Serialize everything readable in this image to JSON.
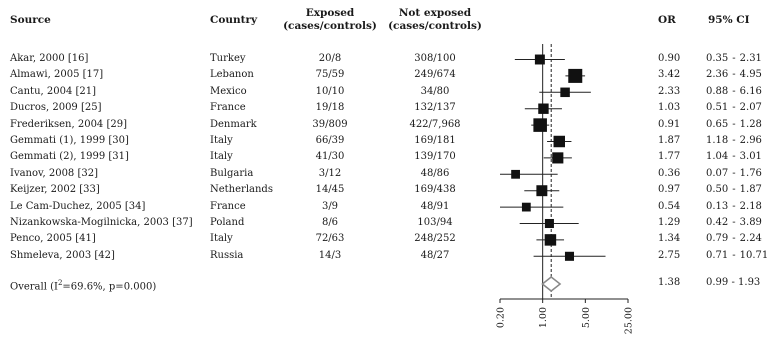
{
  "table": {
    "headers": {
      "source": "Source",
      "country": "Country",
      "exposed_line1": "Exposed",
      "exposed_line2": "(cases/controls)",
      "notexposed_line1": "Not exposed",
      "notexposed_line2": "(cases/controls)",
      "or": "OR",
      "ci": "95% CI"
    },
    "rows": [
      {
        "source": "Akar, 2000 [16]",
        "country": "Turkey",
        "exposed": "20/8",
        "not_exposed": "308/100",
        "or": "0.90",
        "ci_low": "0.35",
        "ci_high": "2.31"
      },
      {
        "source": "Almawi, 2005 [17]",
        "country": "Lebanon",
        "exposed": "75/59",
        "not_exposed": "249/674",
        "or": "3.42",
        "ci_low": "2.36",
        "ci_high": "4.95"
      },
      {
        "source": "Cantu, 2004 [21]",
        "country": "Mexico",
        "exposed": "10/10",
        "not_exposed": "34/80",
        "or": "2.33",
        "ci_low": "0.88",
        "ci_high": "6.16"
      },
      {
        "source": "Ducros, 2009 [25]",
        "country": "France",
        "exposed": "19/18",
        "not_exposed": "132/137",
        "or": "1.03",
        "ci_low": "0.51",
        "ci_high": "2.07"
      },
      {
        "source": "Frederiksen, 2004 [29]",
        "country": "Denmark",
        "exposed": "39/809",
        "not_exposed": "422/7,968",
        "or": "0.91",
        "ci_low": "0.65",
        "ci_high": "1.28"
      },
      {
        "source": "Gemmati (1), 1999 [30]",
        "country": "Italy",
        "exposed": "66/39",
        "not_exposed": "169/181",
        "or": "1.87",
        "ci_low": "1.18",
        "ci_high": "2.96"
      },
      {
        "source": "Gemmati (2), 1999 [31]",
        "country": "Italy",
        "exposed": "41/30",
        "not_exposed": "139/170",
        "or": "1.77",
        "ci_low": "1.04",
        "ci_high": "3.01"
      },
      {
        "source": "Ivanov, 2008 [32]",
        "country": "Bulgaria",
        "exposed": "3/12",
        "not_exposed": "48/86",
        "or": "0.36",
        "ci_low": "0.07",
        "ci_high": "1.76"
      },
      {
        "source": "Keijzer, 2002 [33]",
        "country": "Netherlands",
        "exposed": "14/45",
        "not_exposed": "169/438",
        "or": "0.97",
        "ci_low": "0.50",
        "ci_high": "1.87"
      },
      {
        "source": "Le Cam-Duchez, 2005 [34]",
        "country": "France",
        "exposed": "3/9",
        "not_exposed": "48/91",
        "or": "0.54",
        "ci_low": "0.13",
        "ci_high": "2.18"
      },
      {
        "source": "Nizankowska-Mogilnicka, 2003 [37]",
        "country": "Poland",
        "exposed": "8/6",
        "not_exposed": "103/94",
        "or": "1.29",
        "ci_low": "0.42",
        "ci_high": "3.89"
      },
      {
        "source": "Penco, 2005 [41]",
        "country": "Italy",
        "exposed": "72/63",
        "not_exposed": "248/252",
        "or": "1.34",
        "ci_low": "0.79",
        "ci_high": "2.24"
      },
      {
        "source": "Shmeleva, 2003 [42]",
        "country": "Russia",
        "exposed": "14/3",
        "not_exposed": "48/27",
        "or": "2.75",
        "ci_low": "0.71",
        "ci_high": "10.71"
      }
    ],
    "overall": {
      "label_prefix": "Overall (I",
      "label_sup": "2",
      "label_suffix": "=69.6%, p=0.000)",
      "or": "1.38",
      "ci_low": "0.99",
      "ci_high": "1.93"
    },
    "ci_sep": "-"
  },
  "chart_data": {
    "type": "forest",
    "x_scale": "log",
    "xlim": [
      0.2,
      25
    ],
    "null_line": 1.0,
    "overall_line": 1.38,
    "tick_labels": [
      "0.20",
      "1.00",
      "5.00",
      "25.00"
    ],
    "ticks": [
      0.2,
      1,
      5,
      25
    ],
    "studies": [
      {
        "label": "Akar, 2000 [16]",
        "or": 0.9,
        "lo": 0.35,
        "hi": 2.31,
        "weight": 0.55
      },
      {
        "label": "Almawi, 2005 [17]",
        "or": 3.42,
        "lo": 2.36,
        "hi": 4.95,
        "weight": 1.0
      },
      {
        "label": "Cantu, 2004 [21]",
        "or": 2.33,
        "lo": 0.88,
        "hi": 6.16,
        "weight": 0.5
      },
      {
        "label": "Ducros, 2009 [25]",
        "or": 1.03,
        "lo": 0.51,
        "hi": 2.07,
        "weight": 0.6
      },
      {
        "label": "Frederiksen, 2004 [29]",
        "or": 0.91,
        "lo": 0.65,
        "hi": 1.28,
        "weight": 0.95
      },
      {
        "label": "Gemmati (1), 1999 [30]",
        "or": 1.87,
        "lo": 1.18,
        "hi": 2.96,
        "weight": 0.72
      },
      {
        "label": "Gemmati (2), 1999 [31]",
        "or": 1.77,
        "lo": 1.04,
        "hi": 3.01,
        "weight": 0.68
      },
      {
        "label": "Ivanov, 2008 [32]",
        "or": 0.36,
        "lo": 0.07,
        "hi": 1.76,
        "weight": 0.42
      },
      {
        "label": "Keijzer, 2002 [33]",
        "or": 0.97,
        "lo": 0.5,
        "hi": 1.87,
        "weight": 0.66
      },
      {
        "label": "Le Cam-Duchez, 2005 [34]",
        "or": 0.54,
        "lo": 0.13,
        "hi": 2.18,
        "weight": 0.42
      },
      {
        "label": "Nizankowska-Mogilnicka, 2003 [37]",
        "or": 1.29,
        "lo": 0.42,
        "hi": 3.89,
        "weight": 0.45
      },
      {
        "label": "Penco, 2005 [41]",
        "or": 1.34,
        "lo": 0.79,
        "hi": 2.24,
        "weight": 0.72
      },
      {
        "label": "Shmeleva, 2003 [42]",
        "or": 2.75,
        "lo": 0.71,
        "hi": 10.71,
        "weight": 0.45
      }
    ],
    "overall": {
      "or": 1.38,
      "lo": 0.99,
      "hi": 1.93
    }
  }
}
